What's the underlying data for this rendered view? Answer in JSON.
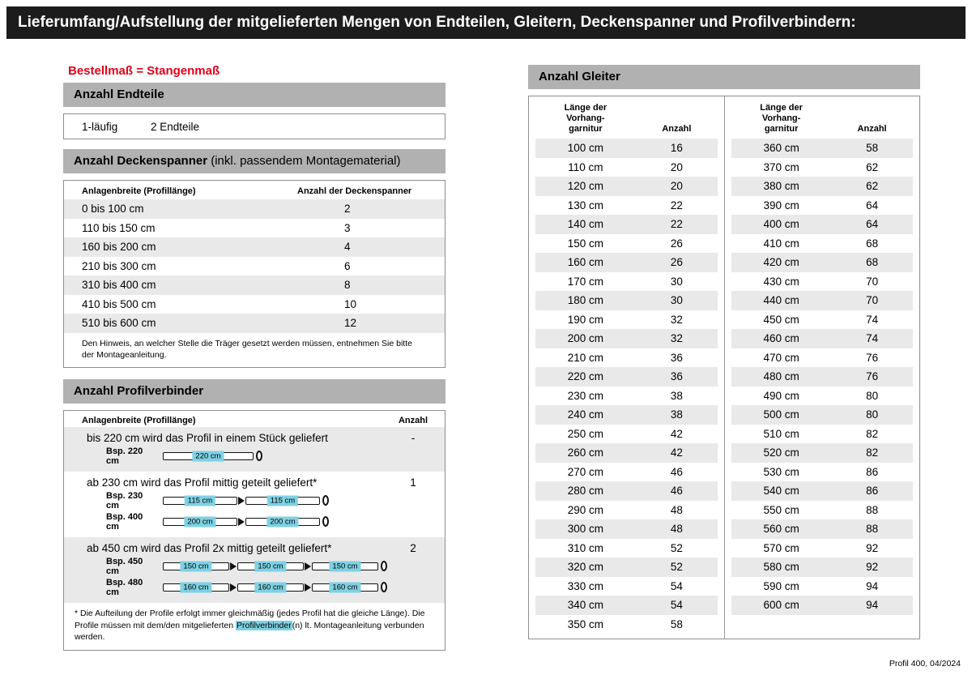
{
  "page": {
    "title": "Lieferumfang/Aufstellung der mitgelieferten Mengen von Endteilen, Gleitern, Deckenspanner und Profilverbindern:",
    "order_note": "Bestellmaß = Stangenmaß",
    "footer": "Profil 400, 04/2024"
  },
  "endteile": {
    "heading": "Anzahl Endteile",
    "variant": "1-läufig",
    "count": "2 Endteile"
  },
  "deckenspanner": {
    "heading_bold": "Anzahl Deckenspanner",
    "heading_note": " (inkl. passendem Montagematerial)",
    "col1": "Anlagenbreite (Profillänge)",
    "col2": "Anzahl der Deckenspanner",
    "rows": [
      {
        "range": "0 bis 100 cm",
        "count": "2"
      },
      {
        "range": "110 bis 150 cm",
        "count": "3"
      },
      {
        "range": "160 bis 200 cm",
        "count": "4"
      },
      {
        "range": "210 bis 300 cm",
        "count": "6"
      },
      {
        "range": "310 bis 400 cm",
        "count": "8"
      },
      {
        "range": "410 bis 500 cm",
        "count": "10"
      },
      {
        "range": "510 bis 600 cm",
        "count": "12"
      }
    ],
    "note": "Den Hinweis, an welcher Stelle die Träger gesetzt werden müssen, entnehmen Sie bitte der Montageanleitung."
  },
  "profilverbinder": {
    "heading": "Anzahl Profilverbinder",
    "col1": "Anlagenbreite (Profillänge)",
    "col2": "Anzahl",
    "blocks": [
      {
        "text": "bis 220 cm wird das Profil in einem Stück geliefert",
        "count": "-",
        "shaded": true,
        "examples": [
          {
            "label": "Bsp. 220 cm",
            "segments": [
              "220 cm"
            ]
          }
        ]
      },
      {
        "text": "ab 230 cm wird das Profil mittig geteilt geliefert*",
        "count": "1",
        "shaded": false,
        "examples": [
          {
            "label": "Bsp. 230 cm",
            "segments": [
              "115 cm",
              "115 cm"
            ]
          },
          {
            "label": "Bsp. 400 cm",
            "segments": [
              "200 cm",
              "200 cm"
            ]
          }
        ]
      },
      {
        "text": "ab 450 cm wird das Profil 2x mittig geteilt geliefert*",
        "count": "2",
        "shaded": true,
        "examples": [
          {
            "label": "Bsp. 450 cm",
            "segments": [
              "150 cm",
              "150 cm",
              "150 cm"
            ]
          },
          {
            "label": "Bsp. 480 cm",
            "segments": [
              "160 cm",
              "160 cm",
              "160 cm"
            ]
          }
        ]
      }
    ],
    "footnote": {
      "pre": "* Die Aufteilung der Profile erfolgt immer gleichmäßig (jedes Profil hat die gleiche Länge). Die Profile müssen mit dem/den mitgelieferten ",
      "highlight": "Profilverbinder",
      "post": "(n) lt. Montageanleitung verbunden werden."
    }
  },
  "gleiter": {
    "heading": "Anzahl Gleiter",
    "col1": "Länge der\nVorhang-\ngarnitur",
    "col2": "Anzahl",
    "left_rows": [
      {
        "length": "100 cm",
        "count": "16"
      },
      {
        "length": "110 cm",
        "count": "20"
      },
      {
        "length": "120 cm",
        "count": "20"
      },
      {
        "length": "130 cm",
        "count": "22"
      },
      {
        "length": "140 cm",
        "count": "22"
      },
      {
        "length": "150 cm",
        "count": "26"
      },
      {
        "length": "160 cm",
        "count": "26"
      },
      {
        "length": "170 cm",
        "count": "30"
      },
      {
        "length": "180 cm",
        "count": "30"
      },
      {
        "length": "190 cm",
        "count": "32"
      },
      {
        "length": "200 cm",
        "count": "32"
      },
      {
        "length": "210 cm",
        "count": "36"
      },
      {
        "length": "220 cm",
        "count": "36"
      },
      {
        "length": "230 cm",
        "count": "38"
      },
      {
        "length": "240 cm",
        "count": "38"
      },
      {
        "length": "250 cm",
        "count": "42"
      },
      {
        "length": "260 cm",
        "count": "42"
      },
      {
        "length": "270 cm",
        "count": "46"
      },
      {
        "length": "280 cm",
        "count": "46"
      },
      {
        "length": "290 cm",
        "count": "48"
      },
      {
        "length": "300 cm",
        "count": "48"
      },
      {
        "length": "310 cm",
        "count": "52"
      },
      {
        "length": "320 cm",
        "count": "52"
      },
      {
        "length": "330 cm",
        "count": "54"
      },
      {
        "length": "340 cm",
        "count": "54"
      },
      {
        "length": "350 cm",
        "count": "58"
      }
    ],
    "right_rows": [
      {
        "length": "360 cm",
        "count": "58"
      },
      {
        "length": "370 cm",
        "count": "62"
      },
      {
        "length": "380 cm",
        "count": "62"
      },
      {
        "length": "390 cm",
        "count": "64"
      },
      {
        "length": "400 cm",
        "count": "64"
      },
      {
        "length": "410 cm",
        "count": "68"
      },
      {
        "length": "420 cm",
        "count": "68"
      },
      {
        "length": "430 cm",
        "count": "70"
      },
      {
        "length": "440 cm",
        "count": "70"
      },
      {
        "length": "450 cm",
        "count": "74"
      },
      {
        "length": "460 cm",
        "count": "74"
      },
      {
        "length": "470 cm",
        "count": "76"
      },
      {
        "length": "480 cm",
        "count": "76"
      },
      {
        "length": "490 cm",
        "count": "80"
      },
      {
        "length": "500 cm",
        "count": "80"
      },
      {
        "length": "510 cm",
        "count": "82"
      },
      {
        "length": "520 cm",
        "count": "82"
      },
      {
        "length": "530 cm",
        "count": "86"
      },
      {
        "length": "540 cm",
        "count": "86"
      },
      {
        "length": "550 cm",
        "count": "88"
      },
      {
        "length": "560 cm",
        "count": "88"
      },
      {
        "length": "570 cm",
        "count": "92"
      },
      {
        "length": "580 cm",
        "count": "92"
      },
      {
        "length": "590 cm",
        "count": "94"
      },
      {
        "length": "600 cm",
        "count": "94"
      }
    ]
  },
  "colors": {
    "header_bar": "#1c1c1c",
    "section_bar": "#b1b1b1",
    "row_shade": "#e9e9e9",
    "accent_red": "#e2001a",
    "highlight_cyan": "#7ed1e3"
  }
}
